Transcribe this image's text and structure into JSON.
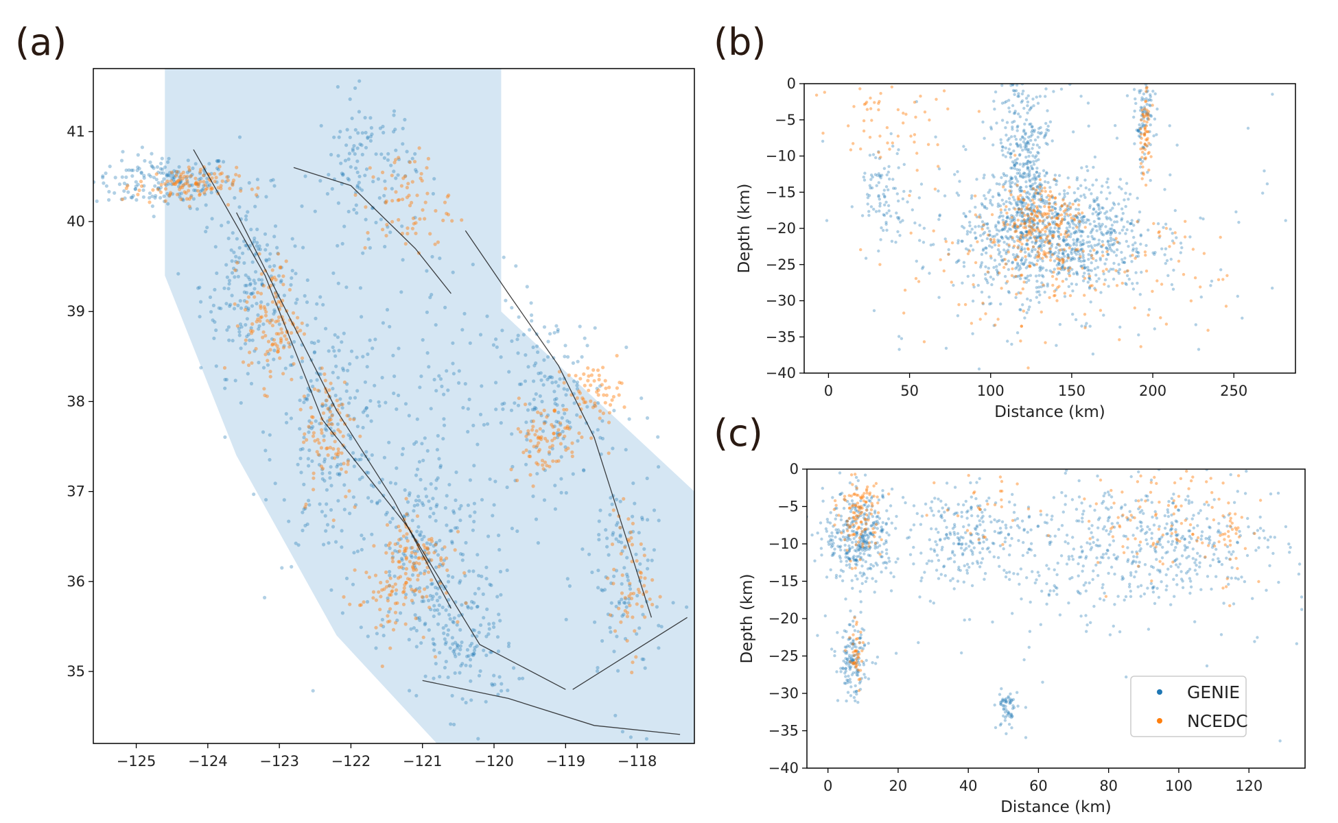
{
  "colors": {
    "genie": "#1f77b4",
    "ncedc": "#ff7f0e",
    "region_fill": "#d5e6f3",
    "faults": "#111111"
  },
  "panels": {
    "a": "(a)",
    "b": "(b)",
    "c": "(c)"
  },
  "chart_data": [
    {
      "panel": "(a)",
      "type": "scatter",
      "title": "",
      "xlabel": "",
      "ylabel": "",
      "xlim": [
        -125.6,
        -117.2
      ],
      "ylim": [
        34.2,
        41.7
      ],
      "xticks": [
        -125,
        -124,
        -123,
        -122,
        -121,
        -120,
        -119,
        -118
      ],
      "xtick_labels": [
        "−125",
        "−124",
        "−123",
        "−122",
        "−121",
        "−120",
        "−119",
        "−118"
      ],
      "yticks": [
        35,
        36,
        37,
        38,
        39,
        40,
        41
      ],
      "ytick_labels": [
        "35",
        "36",
        "37",
        "38",
        "39",
        "40",
        "41"
      ],
      "grid": false,
      "series": [
        {
          "color_key": "genie",
          "clusters": [
            {
              "x": -124.6,
              "y": 40.45,
              "sx": 0.5,
              "sy": 0.15,
              "n": 180
            },
            {
              "x": -123.4,
              "y": 39.3,
              "sx": 0.35,
              "sy": 0.5,
              "n": 200
            },
            {
              "x": -122.3,
              "y": 37.6,
              "sx": 0.4,
              "sy": 0.7,
              "n": 220
            },
            {
              "x": -121.0,
              "y": 36.3,
              "sx": 0.45,
              "sy": 0.55,
              "n": 200
            },
            {
              "x": -120.4,
              "y": 35.3,
              "sx": 0.35,
              "sy": 0.4,
              "n": 140
            },
            {
              "x": -119.2,
              "y": 38.0,
              "sx": 0.4,
              "sy": 0.5,
              "n": 160
            },
            {
              "x": -121.8,
              "y": 40.6,
              "sx": 0.35,
              "sy": 0.4,
              "n": 120
            },
            {
              "x": -118.2,
              "y": 36.0,
              "sx": 0.3,
              "sy": 0.7,
              "n": 120
            },
            {
              "x": -120.8,
              "y": 38.2,
              "sx": 0.6,
              "sy": 0.9,
              "n": 120
            }
          ]
        },
        {
          "color_key": "ncedc",
          "clusters": [
            {
              "x": -124.3,
              "y": 40.4,
              "sx": 0.35,
              "sy": 0.1,
              "n": 110
            },
            {
              "x": -123.1,
              "y": 38.9,
              "sx": 0.2,
              "sy": 0.35,
              "n": 120
            },
            {
              "x": -122.3,
              "y": 37.7,
              "sx": 0.2,
              "sy": 0.4,
              "n": 90
            },
            {
              "x": -121.1,
              "y": 36.3,
              "sx": 0.25,
              "sy": 0.25,
              "n": 100
            },
            {
              "x": -119.3,
              "y": 37.6,
              "sx": 0.25,
              "sy": 0.2,
              "n": 80
            },
            {
              "x": -118.6,
              "y": 38.1,
              "sx": 0.2,
              "sy": 0.15,
              "n": 60
            },
            {
              "x": -121.2,
              "y": 40.2,
              "sx": 0.3,
              "sy": 0.3,
              "n": 70
            },
            {
              "x": -118.1,
              "y": 36.0,
              "sx": 0.15,
              "sy": 0.4,
              "n": 60
            },
            {
              "x": -121.5,
              "y": 35.8,
              "sx": 0.3,
              "sy": 0.25,
              "n": 60
            }
          ]
        }
      ],
      "faults": [
        [
          [
            -124.2,
            40.8
          ],
          [
            -123.2,
            39.4
          ],
          [
            -122.4,
            37.8
          ],
          [
            -121.2,
            36.6
          ],
          [
            -120.2,
            35.3
          ],
          [
            -119.0,
            34.8
          ]
        ],
        [
          [
            -123.6,
            40.1
          ],
          [
            -122.9,
            39.0
          ],
          [
            -122.2,
            37.9
          ],
          [
            -121.4,
            36.9
          ],
          [
            -120.6,
            35.7
          ]
        ],
        [
          [
            -120.4,
            39.9
          ],
          [
            -119.8,
            39.2
          ],
          [
            -119.1,
            38.4
          ],
          [
            -118.6,
            37.6
          ],
          [
            -118.2,
            36.6
          ],
          [
            -117.8,
            35.6
          ]
        ],
        [
          [
            -121.0,
            34.9
          ],
          [
            -119.8,
            34.7
          ],
          [
            -118.6,
            34.4
          ],
          [
            -117.4,
            34.3
          ]
        ],
        [
          [
            -118.9,
            34.8
          ],
          [
            -118.1,
            35.2
          ],
          [
            -117.3,
            35.6
          ]
        ],
        [
          [
            -122.8,
            40.6
          ],
          [
            -122.0,
            40.4
          ],
          [
            -121.1,
            39.7
          ],
          [
            -120.6,
            39.2
          ]
        ]
      ]
    },
    {
      "panel": "(b)",
      "type": "scatter",
      "title": "",
      "xlabel": "Distance (km)",
      "ylabel": "Depth (km)",
      "xlim": [
        -15,
        288
      ],
      "ylim": [
        -40,
        0
      ],
      "xticks": [
        0,
        50,
        100,
        150,
        200,
        250
      ],
      "xtick_labels": [
        "0",
        "50",
        "100",
        "150",
        "200",
        "250"
      ],
      "yticks": [
        0,
        -5,
        -10,
        -15,
        -20,
        -25,
        -30,
        -35,
        -40
      ],
      "ytick_labels": [
        "0",
        "−5",
        "−10",
        "−15",
        "−20",
        "−25",
        "−30",
        "−35",
        "−40"
      ],
      "grid": false,
      "series": [
        {
          "name": "GENIE",
          "color_key": "genie",
          "clusters": [
            {
              "x": 140,
              "y": -21,
              "sx": 30,
              "sy": 4,
              "n": 900
            },
            {
              "x": 120,
              "y": -12,
              "sx": 8,
              "sy": 8,
              "n": 400
            },
            {
              "x": 195,
              "y": -5,
              "sx": 3,
              "sy": 3,
              "n": 90
            },
            {
              "x": 35,
              "y": -15,
              "sx": 8,
              "sy": 3,
              "n": 90
            },
            {
              "x": 150,
              "y": -20,
              "sx": 70,
              "sy": 10,
              "n": 160
            }
          ]
        },
        {
          "name": "NCEDC",
          "color_key": "ncedc",
          "clusters": [
            {
              "x": 130,
              "y": -19,
              "sx": 12,
              "sy": 3,
              "n": 200
            },
            {
              "x": 195,
              "y": -7,
              "sx": 2,
              "sy": 3,
              "n": 60
            },
            {
              "x": 140,
              "y": -26,
              "sx": 50,
              "sy": 4,
              "n": 180
            },
            {
              "x": 40,
              "y": -5,
              "sx": 25,
              "sy": 4,
              "n": 60
            }
          ]
        }
      ]
    },
    {
      "panel": "(c)",
      "type": "scatter",
      "title": "",
      "xlabel": "Distance (km)",
      "ylabel": "Depth (km)",
      "xlim": [
        -6,
        136
      ],
      "ylim": [
        -40,
        0
      ],
      "xticks": [
        0,
        20,
        40,
        60,
        80,
        100,
        120
      ],
      "xtick_labels": [
        "0",
        "20",
        "40",
        "60",
        "80",
        "100",
        "120"
      ],
      "yticks": [
        0,
        -5,
        -10,
        -15,
        -20,
        -25,
        -30,
        -35,
        -40
      ],
      "ytick_labels": [
        "0",
        "−5",
        "−10",
        "−15",
        "−20",
        "−25",
        "−30",
        "−35",
        "−40"
      ],
      "grid": false,
      "legend": {
        "placement": "lower-right",
        "entries": [
          "GENIE",
          "NCEDC"
        ]
      },
      "series": [
        {
          "name": "GENIE",
          "color_key": "genie",
          "clusters": [
            {
              "x": 9,
              "y": -9,
              "sx": 5,
              "sy": 3,
              "n": 350
            },
            {
              "x": 7,
              "y": -26,
              "sx": 2,
              "sy": 2.5,
              "n": 140
            },
            {
              "x": 51,
              "y": -32,
              "sx": 1.5,
              "sy": 1.5,
              "n": 60
            },
            {
              "x": 40,
              "y": -9,
              "sx": 8,
              "sy": 3,
              "n": 200
            },
            {
              "x": 90,
              "y": -10,
              "sx": 20,
              "sy": 4,
              "n": 450
            },
            {
              "x": 70,
              "y": -14,
              "sx": 40,
              "sy": 8,
              "n": 150
            }
          ]
        },
        {
          "name": "NCEDC",
          "color_key": "ncedc",
          "clusters": [
            {
              "x": 9,
              "y": -6,
              "sx": 3,
              "sy": 3,
              "n": 120
            },
            {
              "x": 8,
              "y": -25,
              "sx": 1,
              "sy": 2,
              "n": 40
            },
            {
              "x": 95,
              "y": -6,
              "sx": 12,
              "sy": 4,
              "n": 100
            },
            {
              "x": 115,
              "y": -10,
              "sx": 3,
              "sy": 3,
              "n": 30
            },
            {
              "x": 45,
              "y": -5,
              "sx": 6,
              "sy": 3,
              "n": 30
            }
          ]
        }
      ]
    }
  ]
}
